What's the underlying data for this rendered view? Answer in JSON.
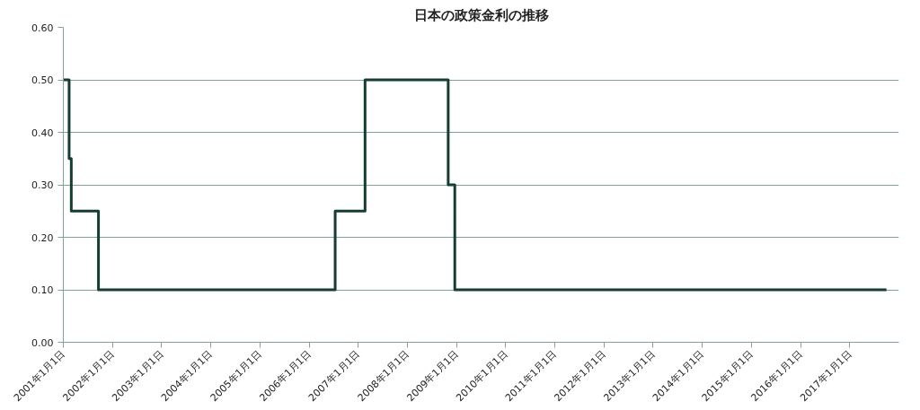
{
  "chart_data": {
    "type": "step",
    "title": "日本の政策金利の推移",
    "x": [
      "2001-01-01",
      "2001-02-13",
      "2001-03-01",
      "2001-09-19",
      "2006-07-14",
      "2007-02-21",
      "2008-10-31",
      "2008-12-19",
      "2017-10-01"
    ],
    "series": [
      {
        "color": "#143d33",
        "values": [
          0.5,
          0.35,
          0.25,
          0.1,
          0.25,
          0.5,
          0.3,
          0.1,
          0.1
        ]
      }
    ],
    "xlim": [
      "2001-01-01",
      "2018-01-01"
    ],
    "xticks": [
      {
        "value": "2001-01-01",
        "label": "2001年1月1日"
      },
      {
        "value": "2002-01-01",
        "label": "2002年1月1日"
      },
      {
        "value": "2003-01-01",
        "label": "2003年1月1日"
      },
      {
        "value": "2004-01-01",
        "label": "2004年1月1日"
      },
      {
        "value": "2005-01-01",
        "label": "2005年1月1日"
      },
      {
        "value": "2006-01-01",
        "label": "2006年1月1日"
      },
      {
        "value": "2007-01-01",
        "label": "2007年1月1日"
      },
      {
        "value": "2008-01-01",
        "label": "2008年1月1日"
      },
      {
        "value": "2009-01-01",
        "label": "2009年1月1日"
      },
      {
        "value": "2010-01-01",
        "label": "2010年1月1日"
      },
      {
        "value": "2011-01-01",
        "label": "2011年1月1日"
      },
      {
        "value": "2012-01-01",
        "label": "2012年1月1日"
      },
      {
        "value": "2013-01-01",
        "label": "2013年1月1日"
      },
      {
        "value": "2014-01-01",
        "label": "2014年1月1日"
      },
      {
        "value": "2015-01-01",
        "label": "2015年1月1日"
      },
      {
        "value": "2016-01-01",
        "label": "2016年1月1日"
      },
      {
        "value": "2017-01-01",
        "label": "2017年1月1日"
      }
    ],
    "ylim": [
      0,
      0.6
    ],
    "yticks": [
      {
        "value": 0,
        "label": "0.00"
      },
      {
        "value": 0.1,
        "label": "0.10"
      },
      {
        "value": 0.2,
        "label": "0.20"
      },
      {
        "value": 0.3,
        "label": "0.30"
      },
      {
        "value": 0.4,
        "label": "0.40"
      },
      {
        "value": 0.5,
        "label": "0.50"
      },
      {
        "value": 0.6,
        "label": "0.60"
      }
    ],
    "grid": "y",
    "marker": "none",
    "line_style": "solid"
  }
}
